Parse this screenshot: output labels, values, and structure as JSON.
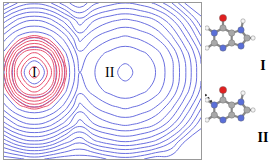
{
  "chart_data": {
    "type": "contour",
    "x": [
      0,
      1,
      2,
      3,
      4,
      5,
      6,
      7,
      8,
      9,
      10,
      11,
      12,
      13
    ],
    "y": [
      0,
      1,
      2,
      3,
      4,
      5,
      6,
      7,
      8,
      9
    ],
    "z": [
      [
        40,
        39,
        37.5,
        39,
        40,
        40,
        40,
        38,
        37,
        38,
        40,
        40,
        40,
        40
      ],
      [
        30,
        25.5,
        24,
        25.5,
        30,
        33,
        29,
        27,
        26,
        27,
        29,
        33,
        39,
        40
      ],
      [
        19.5,
        15,
        13.5,
        15,
        19.5,
        25,
        21,
        19,
        18,
        19,
        21,
        25,
        31,
        38
      ],
      [
        12,
        7.5,
        6,
        7.5,
        12,
        19.5,
        16,
        14,
        13,
        14,
        16,
        20,
        26,
        33
      ],
      [
        7.5,
        3,
        1.5,
        3,
        7.5,
        15,
        12,
        10,
        9,
        10,
        12,
        16,
        22,
        29
      ],
      [
        6,
        1.5,
        0,
        1.5,
        6,
        13.5,
        11,
        9,
        8,
        9,
        11,
        15,
        21,
        28
      ],
      [
        7.5,
        3,
        1.5,
        3,
        7.5,
        15,
        12,
        10,
        9,
        10,
        12,
        16,
        22,
        29
      ],
      [
        12,
        7.5,
        6,
        7.5,
        12,
        19.5,
        16,
        14,
        13,
        14,
        16,
        20,
        26,
        33
      ],
      [
        19.5,
        15,
        13.5,
        15,
        19.5,
        25,
        21,
        19,
        18,
        19,
        21,
        25,
        31,
        38
      ],
      [
        30,
        25.5,
        24,
        25.5,
        30,
        33,
        29,
        27,
        26,
        27,
        29,
        33,
        39,
        40
      ]
    ],
    "series": [
      {
        "color": "#6b70e0",
        "contours": {
          "start": 1,
          "end": 40,
          "size": 2.5
        }
      },
      {
        "color": "#e8506e",
        "contours": {
          "start": 0.5,
          "end": 7,
          "size": 0.8
        }
      }
    ],
    "xlim": [
      0,
      13
    ],
    "ylim": [
      0,
      9
    ],
    "grid": false,
    "tick_labels": false,
    "annotations": [
      {
        "text": "I",
        "x": 2,
        "y": 5
      },
      {
        "text": "II",
        "x": 7,
        "y": 5
      }
    ]
  },
  "structures": [
    {
      "label": "I"
    },
    {
      "label": "II"
    }
  ]
}
